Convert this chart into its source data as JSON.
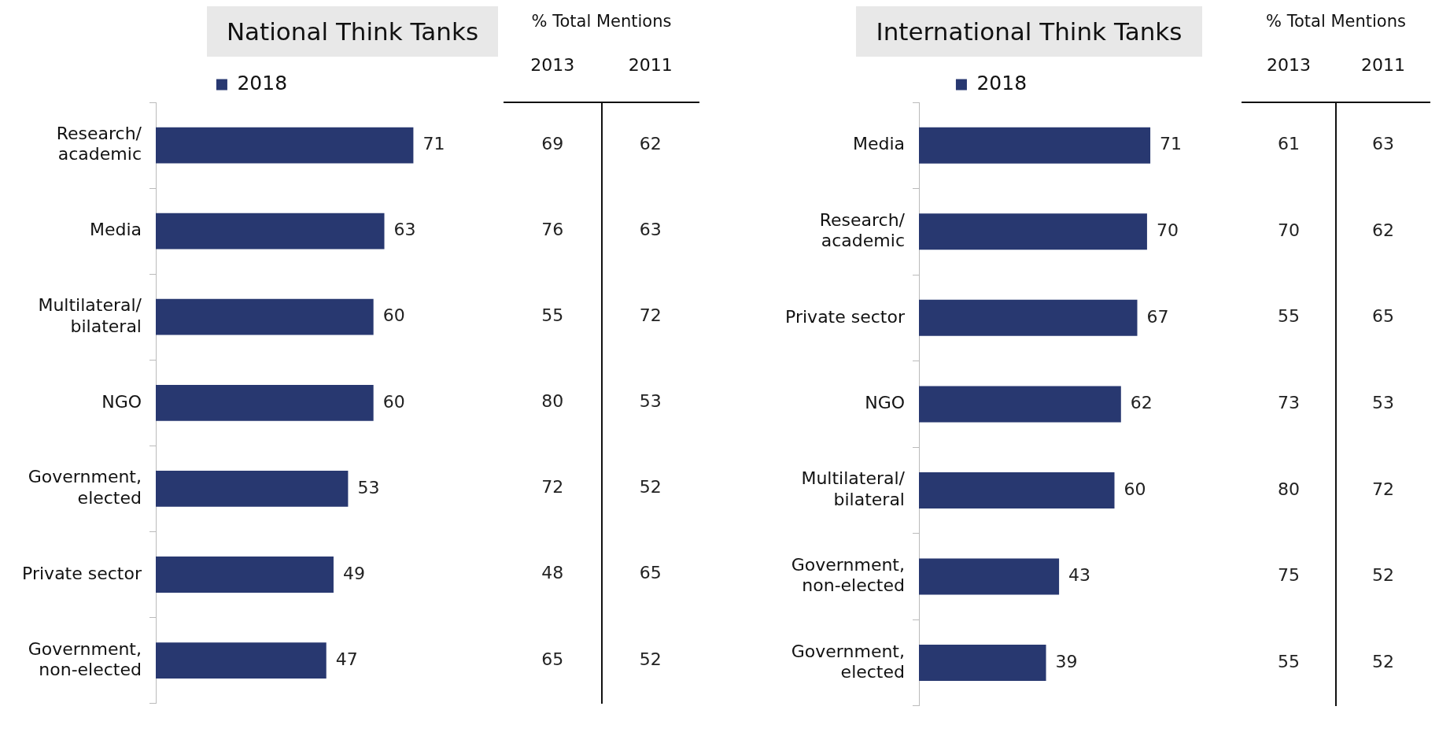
{
  "chart_data": [
    {
      "type": "bar",
      "orientation": "horizontal",
      "title": "National Think Tanks",
      "legend": "top",
      "data_labels": true,
      "tick_labels": "y",
      "categories": [
        "Research/ academic",
        "Media",
        "Multilateral/ bilateral",
        "NGO",
        "Government, elected",
        "Private sector",
        "Government, non-elected"
      ],
      "series": [
        {
          "name": "2018",
          "color": "#283870",
          "values": [
            71,
            63,
            60,
            60,
            53,
            49,
            47
          ]
        }
      ]
    },
    {
      "type": "heatmap",
      "title": "% Total Mentions",
      "categories": [
        "2013",
        "2011"
      ],
      "y_categories": [
        null,
        null,
        null,
        null,
        null,
        null,
        null
      ],
      "data_labels": true,
      "cells": [
        [
          69,
          62
        ],
        [
          76,
          63
        ],
        [
          55,
          72
        ],
        [
          80,
          53
        ],
        [
          72,
          52
        ],
        [
          48,
          65
        ],
        [
          65,
          52
        ]
      ]
    },
    {
      "type": "bar",
      "orientation": "horizontal",
      "title": "International Think Tanks",
      "legend": "top",
      "data_labels": true,
      "tick_labels": "y",
      "categories": [
        "Media",
        "Research/ academic",
        "Private sector",
        "NGO",
        "Multilateral/ bilateral",
        "Government, non-elected",
        "Government, elected"
      ],
      "series": [
        {
          "name": "2018",
          "color": "#283870",
          "values": [
            71,
            70,
            67,
            62,
            60,
            43,
            39
          ]
        }
      ]
    },
    {
      "type": "heatmap",
      "title": "% Total Mentions",
      "categories": [
        "2013",
        "2011"
      ],
      "y_categories": [
        null,
        null,
        null,
        null,
        null,
        null,
        null
      ],
      "data_labels": true,
      "cells": [
        [
          61,
          63
        ],
        [
          70,
          62
        ],
        [
          55,
          65
        ],
        [
          73,
          53
        ],
        [
          80,
          72
        ],
        [
          75,
          52
        ],
        [
          55,
          52
        ]
      ]
    }
  ]
}
